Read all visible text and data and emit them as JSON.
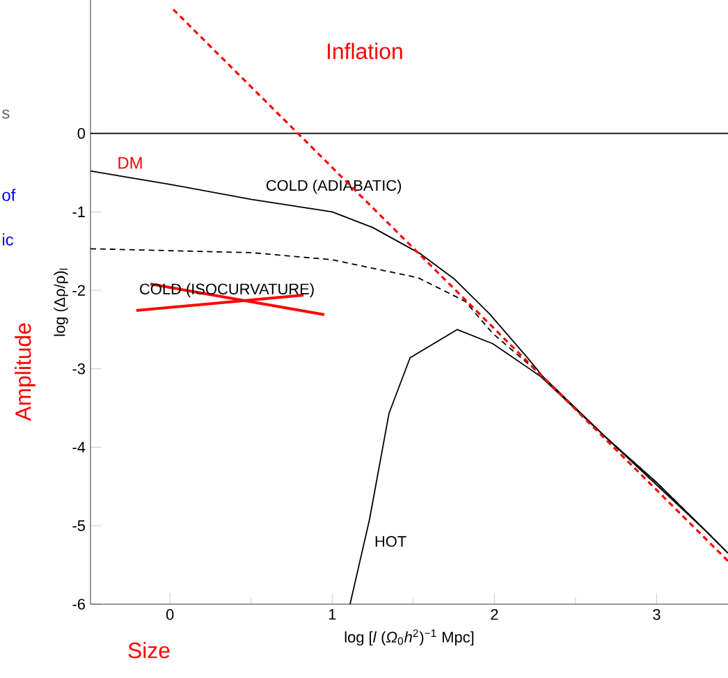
{
  "chart_data": {
    "type": "line",
    "xlabel": "log [*l* (*Ω*$_{0}$*h*$^{2}$)$^{−1}$ Mpc]",
    "ylabel": "log (Δρ/ρ)$_{l}$",
    "xlim": [
      -0.49,
      3.44
    ],
    "ylim": [
      -6,
      1.7
    ],
    "xticks": [
      0,
      1,
      2,
      3
    ],
    "yticks": [
      0,
      -1,
      -2,
      -3,
      -4,
      -5,
      -6
    ],
    "grid": false,
    "marker": "none",
    "series": [
      {
        "name": "COLD (ADIABATIC)",
        "color": "#000000",
        "line_style": "solid",
        "x": [
          -0.49,
          0,
          0.5,
          1.0,
          1.25,
          1.54,
          1.75,
          1.97,
          2.2,
          2.3,
          2.68,
          3.0,
          3.32,
          3.44
        ],
        "values": [
          -0.48,
          -0.65,
          -0.84,
          -1.0,
          -1.2,
          -1.53,
          -1.85,
          -2.3,
          -2.85,
          -3.1,
          -3.86,
          -4.45,
          -5.1,
          -5.35
        ]
      },
      {
        "name": "COLD (ISOCURVATURE)",
        "color": "#000000",
        "line_style": "dashed",
        "x": [
          -0.49,
          0.5,
          1.0,
          1.53,
          1.82,
          1.99,
          2.3,
          2.68,
          3.0,
          3.32,
          3.44
        ],
        "values": [
          -1.47,
          -1.52,
          -1.61,
          -1.84,
          -2.14,
          -2.55,
          -3.1,
          -3.86,
          -4.45,
          -5.1,
          -5.35
        ]
      },
      {
        "name": "HOT",
        "color": "#000000",
        "line_style": "solid",
        "x": [
          1.11,
          1.23,
          1.35,
          1.48,
          1.77,
          1.99,
          2.28,
          2.68,
          3.32,
          3.44
        ],
        "values": [
          -6,
          -4.92,
          -3.57,
          -2.86,
          -2.5,
          -2.68,
          -3.09,
          -3.86,
          -5.1,
          -5.35
        ]
      },
      {
        "name": "Inflation",
        "color": "#ff0000",
        "line_style": "dashed",
        "x": [
          0.02,
          3.44
        ],
        "values": [
          1.58,
          -5.45
        ]
      }
    ],
    "ref_lines": [
      {
        "axis": "y",
        "value": 0,
        "color": "#000000",
        "line_style": "solid"
      }
    ],
    "annotations": [
      "s",
      "of",
      "ic",
      "DM",
      "Amplitude",
      "Size"
    ]
  }
}
